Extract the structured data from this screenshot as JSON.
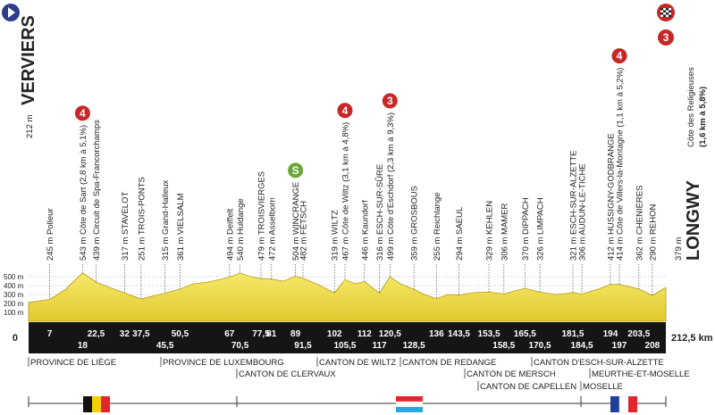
{
  "chart_data": {
    "type": "profile",
    "start": {
      "altitude_label": "212 m",
      "name": "VERVIERS"
    },
    "finish": {
      "altitude_label": "379 m",
      "name": "LONGWY",
      "climb": "Côte des Religieuses",
      "climb_detail": "(1,6 km à 5,8%)",
      "category": "3"
    },
    "color": "#eed844",
    "x": [
      0,
      7,
      12,
      18,
      22.5,
      27,
      32,
      37.5,
      45.5,
      50.5,
      55,
      60,
      67,
      70.5,
      74,
      77.5,
      81,
      85,
      89,
      91.5,
      96,
      102,
      105.5,
      109,
      112,
      117,
      120.5,
      124,
      128.5,
      132,
      136,
      140,
      143.5,
      148,
      153.5,
      158.5,
      162,
      165.5,
      170.5,
      176,
      181.5,
      184.5,
      190,
      194,
      197,
      200,
      203.5,
      208,
      212.5
    ],
    "values": [
      212,
      245,
      350,
      543,
      439,
      380,
      317,
      251,
      315,
      361,
      420,
      440,
      494,
      540,
      500,
      479,
      472,
      450,
      504,
      482,
      420,
      319,
      467,
      420,
      446,
      316,
      499,
      420,
      359,
      300,
      255,
      300,
      294,
      320,
      329,
      306,
      340,
      370,
      326,
      300,
      321,
      306,
      360,
      412,
      414,
      390,
      362,
      290,
      379
    ],
    "xlim": [
      0,
      212.5
    ],
    "ylim": [
      0,
      500
    ],
    "xticks": [
      0,
      {
        "value": 212.5,
        "label": "212,5 km"
      }
    ],
    "yticks": [
      {
        "value": 100,
        "label": "100 m"
      },
      {
        "value": 200,
        "label": "200 m"
      },
      {
        "value": 300,
        "label": "300 m"
      },
      {
        "value": 400,
        "label": "400 m"
      },
      {
        "value": 500,
        "label": "500 m"
      }
    ],
    "places": [
      {
        "label": "245 m Polleur",
        "km": 7,
        "km_label": "7"
      },
      {
        "label": "543 m Côte de Sart (2,8 km à 5,1%)",
        "km": 18,
        "km_label": "18"
      },
      {
        "label": "439 m Circuit de Spa-Francorchamps",
        "km": 22.5,
        "km_label": "22,5"
      },
      {
        "label": "317 m STAVELOT",
        "km": 32,
        "km_label": "32"
      },
      {
        "label": "251 m TROIS-PONTS",
        "km": 37.5,
        "km_label": "37,5"
      },
      {
        "label": "315 m Grand-Halleux",
        "km": 45.5,
        "km_label": "45,5"
      },
      {
        "label": "361 m VIELSALM",
        "km": 50.5,
        "km_label": "50,5"
      },
      {
        "label": "494 m Deiffelt",
        "km": 67,
        "km_label": "67"
      },
      {
        "label": "540 m Huldange",
        "km": 70.5,
        "km_label": "70,5"
      },
      {
        "label": "479 m TROISVIERGES",
        "km": 77.5,
        "km_label": "77,5"
      },
      {
        "label": "472 m Asselborn",
        "km": 81,
        "km_label": "81"
      },
      {
        "label": "504 m WINCRANGE",
        "km": 89,
        "km_label": "89"
      },
      {
        "label": "482 m FÊTSCH",
        "km": 91.5,
        "km_label": "91,5"
      },
      {
        "label": "319 m WILTZ",
        "km": 102,
        "km_label": "102"
      },
      {
        "label": "467 m Côte de Wiltz (3,1 km à 4,8%)",
        "km": 105.5,
        "km_label": "105,5"
      },
      {
        "label": "446 m Kaundorf",
        "km": 112,
        "km_label": "112"
      },
      {
        "label": "316 m ESCH-SUR-SÛRE",
        "km": 117,
        "km_label": "117"
      },
      {
        "label": "499 m Côte d'Eschdorf (2,3 km à 9,3%)",
        "km": 120.5,
        "km_label": "120,5"
      },
      {
        "label": "359 m GROSBOUS",
        "km": 128.5,
        "km_label": "128,5"
      },
      {
        "label": "255 m Reichlange",
        "km": 136,
        "km_label": "136"
      },
      {
        "label": "294 m SAEUL",
        "km": 143.5,
        "km_label": "143,5"
      },
      {
        "label": "329 m KEHLEN",
        "km": 153.5,
        "km_label": "153,5"
      },
      {
        "label": "306 m MAMER",
        "km": 158.5,
        "km_label": "158,5"
      },
      {
        "label": "370 m DIPPACH",
        "km": 165.5,
        "km_label": "165,5"
      },
      {
        "label": "326 m LIMPACH",
        "km": 170.5,
        "km_label": "170,5"
      },
      {
        "label": "321 m ESCH-SUR-ALZETTE",
        "km": 181.5,
        "km_label": "181,5"
      },
      {
        "label": "306 m AUDUN-LE-TICHE",
        "km": 184.5,
        "km_label": "184,5"
      },
      {
        "label": "412 m HUSSIGNY-GODBRANGE",
        "km": 194,
        "km_label": "194"
      },
      {
        "label": "414 m Côte de Villers-la-Montagne (1,1 km à 5,2%)",
        "km": 197,
        "km_label": "197"
      },
      {
        "label": "362 m CHENIÈRES",
        "km": 203.5,
        "km_label": "203,5"
      },
      {
        "label": "290 m REHON",
        "km": 208,
        "km_label": "208"
      }
    ],
    "climbs": [
      {
        "place": 1,
        "category": "4"
      },
      {
        "place": 11,
        "category": "S"
      },
      {
        "place": 14,
        "category": "4"
      },
      {
        "place": 17,
        "category": "3"
      },
      {
        "place": 28,
        "category": "4"
      }
    ],
    "regions": [
      "PROVINCE DE LIÈGE",
      "PROVINCE DE LUXEMBOURG",
      "CANTON DE CLERVAUX",
      "CANTON DE WILTZ",
      "CANTON DE REDANGE",
      "CANTON DE MERSCH",
      "CANTON DE CAPELLEN",
      "CANTON D'ESCH-SUR-ALZETTE",
      "MOSELLE",
      "MEURTHE-ET-MOSELLE"
    ]
  }
}
